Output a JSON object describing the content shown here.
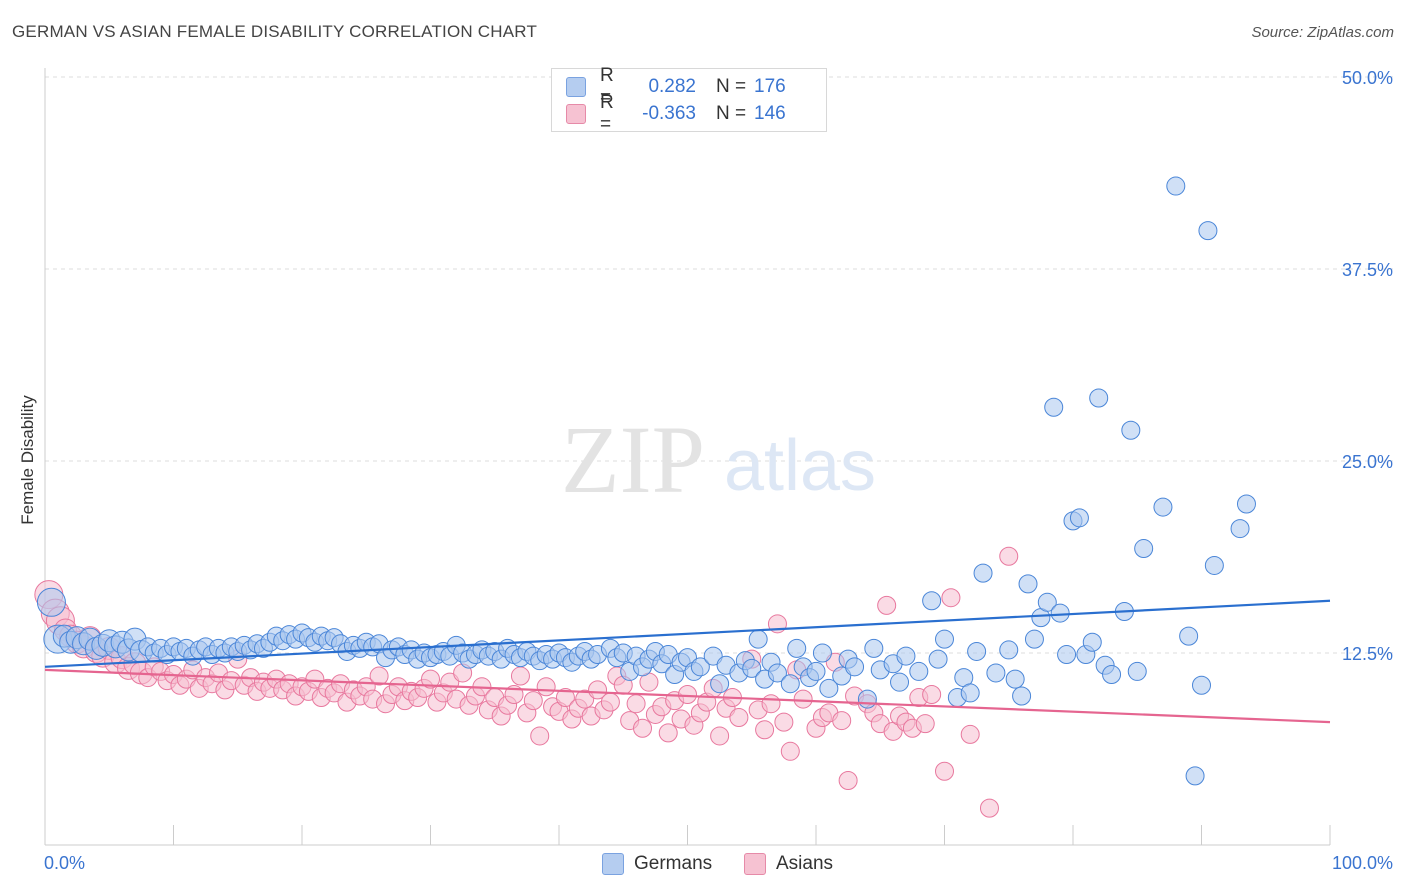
{
  "header": {
    "title": "GERMAN VS ASIAN FEMALE DISABILITY CORRELATION CHART",
    "source": "Source: ZipAtlas.com"
  },
  "watermark": {
    "zip": "ZIP",
    "atlas": "atlas"
  },
  "legend": {
    "germans": {
      "r_label": "R =",
      "r_value": "0.282",
      "n_label": "N =",
      "n_value": "176"
    },
    "asians": {
      "r_label": "R =",
      "r_value": "-0.363",
      "n_label": "N =",
      "n_value": "146"
    }
  },
  "colors": {
    "germans_fill": "#a9c6ef",
    "germans_stroke": "#4a86d8",
    "germans_line": "#2a6fcf",
    "asians_fill": "#f6bdd0",
    "asians_stroke": "#e8789e",
    "asians_line": "#e56590",
    "tick_label": "#3a74d0",
    "grid": "#dddddd"
  },
  "chart_data": {
    "type": "scatter",
    "title": "GERMAN VS ASIAN FEMALE DISABILITY CORRELATION CHART",
    "xlabel": "",
    "ylabel": "Female Disability",
    "xlim": [
      0,
      100
    ],
    "ylim": [
      0,
      50
    ],
    "x_tick_labels": [
      "0.0%",
      "100.0%"
    ],
    "y_ticks": [
      12.5,
      25.0,
      37.5,
      50.0
    ],
    "y_tick_labels": [
      "12.5%",
      "25.0%",
      "37.5%",
      "50.0%"
    ],
    "grid": true,
    "legend_position": "bottom-center",
    "series": [
      {
        "name": "Germans",
        "r": 0.282,
        "n": 176,
        "trend": [
          [
            0,
            11.6
          ],
          [
            100,
            15.9
          ]
        ],
        "points": [
          [
            0.5,
            15.8
          ],
          [
            1,
            13.4
          ],
          [
            1.5,
            13.6
          ],
          [
            2,
            13.2
          ],
          [
            2.5,
            13.5
          ],
          [
            3,
            13.1
          ],
          [
            3.5,
            13.4
          ],
          [
            4,
            12.8
          ],
          [
            4.5,
            13.0
          ],
          [
            5,
            13.3
          ],
          [
            5.5,
            12.9
          ],
          [
            6,
            13.2
          ],
          [
            6.5,
            12.7
          ],
          [
            7,
            13.4
          ],
          [
            7.5,
            12.6
          ],
          [
            8,
            12.9
          ],
          [
            8.5,
            12.5
          ],
          [
            9,
            12.8
          ],
          [
            9.5,
            12.4
          ],
          [
            10,
            12.9
          ],
          [
            10.5,
            12.6
          ],
          [
            11,
            12.8
          ],
          [
            11.5,
            12.3
          ],
          [
            12,
            12.7
          ],
          [
            12.5,
            12.9
          ],
          [
            13,
            12.4
          ],
          [
            13.5,
            12.8
          ],
          [
            14,
            12.5
          ],
          [
            14.5,
            12.9
          ],
          [
            15,
            12.6
          ],
          [
            15.5,
            13.0
          ],
          [
            16,
            12.7
          ],
          [
            16.5,
            13.1
          ],
          [
            17,
            12.8
          ],
          [
            17.5,
            13.2
          ],
          [
            18,
            13.6
          ],
          [
            18.5,
            13.3
          ],
          [
            19,
            13.7
          ],
          [
            19.5,
            13.4
          ],
          [
            20,
            13.8
          ],
          [
            20.5,
            13.5
          ],
          [
            21,
            13.2
          ],
          [
            21.5,
            13.6
          ],
          [
            22,
            13.3
          ],
          [
            22.5,
            13.5
          ],
          [
            23,
            13.1
          ],
          [
            23.5,
            12.6
          ],
          [
            24,
            13.0
          ],
          [
            24.5,
            12.8
          ],
          [
            25,
            13.2
          ],
          [
            25.5,
            12.9
          ],
          [
            26,
            13.1
          ],
          [
            26.5,
            12.2
          ],
          [
            27,
            12.7
          ],
          [
            27.5,
            12.9
          ],
          [
            28,
            12.4
          ],
          [
            28.5,
            12.7
          ],
          [
            29,
            12.1
          ],
          [
            29.5,
            12.5
          ],
          [
            30,
            12.2
          ],
          [
            30.5,
            12.4
          ],
          [
            31,
            12.6
          ],
          [
            31.5,
            12.3
          ],
          [
            32,
            13.0
          ],
          [
            32.5,
            12.5
          ],
          [
            33,
            12.1
          ],
          [
            33.5,
            12.4
          ],
          [
            34,
            12.7
          ],
          [
            34.5,
            12.3
          ],
          [
            35,
            12.6
          ],
          [
            35.5,
            12.1
          ],
          [
            36,
            12.8
          ],
          [
            36.5,
            12.4
          ],
          [
            37,
            12.2
          ],
          [
            37.5,
            12.6
          ],
          [
            38,
            12.3
          ],
          [
            38.5,
            12.0
          ],
          [
            39,
            12.4
          ],
          [
            39.5,
            12.1
          ],
          [
            40,
            12.5
          ],
          [
            40.5,
            12.2
          ],
          [
            41,
            11.9
          ],
          [
            41.5,
            12.3
          ],
          [
            42,
            12.6
          ],
          [
            42.5,
            12.1
          ],
          [
            43,
            12.4
          ],
          [
            44,
            12.8
          ],
          [
            44.5,
            12.2
          ],
          [
            45,
            12.5
          ],
          [
            45.5,
            11.3
          ],
          [
            46,
            12.3
          ],
          [
            46.5,
            11.6
          ],
          [
            47,
            12.1
          ],
          [
            47.5,
            12.6
          ],
          [
            48,
            11.8
          ],
          [
            48.5,
            12.4
          ],
          [
            49,
            11.1
          ],
          [
            49.5,
            11.9
          ],
          [
            50,
            12.2
          ],
          [
            50.5,
            11.3
          ],
          [
            51,
            11.6
          ],
          [
            52,
            12.3
          ],
          [
            52.5,
            10.5
          ],
          [
            53,
            11.7
          ],
          [
            54,
            11.2
          ],
          [
            54.5,
            12.0
          ],
          [
            55,
            11.5
          ],
          [
            55.5,
            13.4
          ],
          [
            56,
            10.8
          ],
          [
            56.5,
            11.9
          ],
          [
            57,
            11.2
          ],
          [
            58,
            10.5
          ],
          [
            58.5,
            12.8
          ],
          [
            59,
            11.6
          ],
          [
            59.5,
            10.9
          ],
          [
            60,
            11.3
          ],
          [
            60.5,
            12.5
          ],
          [
            61,
            10.2
          ],
          [
            62,
            11.0
          ],
          [
            62.5,
            12.1
          ],
          [
            63,
            11.6
          ],
          [
            64,
            9.5
          ],
          [
            64.5,
            12.8
          ],
          [
            65,
            11.4
          ],
          [
            66,
            11.8
          ],
          [
            66.5,
            10.6
          ],
          [
            67,
            12.3
          ],
          [
            68,
            11.3
          ],
          [
            69,
            15.9
          ],
          [
            69.5,
            12.1
          ],
          [
            70,
            13.4
          ],
          [
            71,
            9.6
          ],
          [
            71.5,
            10.9
          ],
          [
            72,
            9.9
          ],
          [
            72.5,
            12.6
          ],
          [
            73,
            17.7
          ],
          [
            74,
            11.2
          ],
          [
            75,
            12.7
          ],
          [
            75.5,
            10.8
          ],
          [
            76,
            9.7
          ],
          [
            76.5,
            17.0
          ],
          [
            77,
            13.4
          ],
          [
            77.5,
            14.8
          ],
          [
            78,
            15.8
          ],
          [
            78.5,
            28.5
          ],
          [
            79,
            15.1
          ],
          [
            79.5,
            12.4
          ],
          [
            80,
            21.1
          ],
          [
            80.5,
            21.3
          ],
          [
            81,
            12.4
          ],
          [
            81.5,
            13.2
          ],
          [
            82,
            29.1
          ],
          [
            82.5,
            11.7
          ],
          [
            83,
            11.1
          ],
          [
            84,
            15.2
          ],
          [
            84.5,
            27.0
          ],
          [
            85,
            11.3
          ],
          [
            85.5,
            19.3
          ],
          [
            87,
            22.0
          ],
          [
            88,
            42.9
          ],
          [
            89,
            13.6
          ],
          [
            89.5,
            4.5
          ],
          [
            90,
            10.4
          ],
          [
            90.5,
            40.0
          ],
          [
            91,
            18.2
          ],
          [
            93,
            20.6
          ],
          [
            93.5,
            22.2
          ]
        ]
      },
      {
        "name": "Asians",
        "r": -0.363,
        "n": 146,
        "trend": [
          [
            0,
            11.4
          ],
          [
            100,
            8.0
          ]
        ],
        "points": [
          [
            0.3,
            16.3
          ],
          [
            0.8,
            15.1
          ],
          [
            1.2,
            14.6
          ],
          [
            1.6,
            14.0
          ],
          [
            2,
            13.6
          ],
          [
            2.5,
            13.2
          ],
          [
            3,
            12.9
          ],
          [
            3.5,
            13.5
          ],
          [
            4,
            12.6
          ],
          [
            4.5,
            12.3
          ],
          [
            5,
            12.8
          ],
          [
            5.5,
            11.9
          ],
          [
            6,
            12.2
          ],
          [
            6.5,
            11.5
          ],
          [
            7,
            11.8
          ],
          [
            7.5,
            11.2
          ],
          [
            8,
            10.9
          ],
          [
            8.5,
            11.6
          ],
          [
            9,
            11.3
          ],
          [
            9.5,
            10.7
          ],
          [
            10,
            11.1
          ],
          [
            10.5,
            10.4
          ],
          [
            11,
            10.8
          ],
          [
            11.5,
            11.4
          ],
          [
            12,
            10.2
          ],
          [
            12.5,
            10.9
          ],
          [
            13,
            10.5
          ],
          [
            13.5,
            11.2
          ],
          [
            14,
            10.1
          ],
          [
            14.5,
            10.7
          ],
          [
            15,
            12.1
          ],
          [
            15.5,
            10.4
          ],
          [
            16,
            10.9
          ],
          [
            16.5,
            10.0
          ],
          [
            17,
            10.6
          ],
          [
            17.5,
            10.2
          ],
          [
            18,
            10.8
          ],
          [
            18.5,
            10.1
          ],
          [
            19,
            10.5
          ],
          [
            19.5,
            9.7
          ],
          [
            20,
            10.3
          ],
          [
            20.5,
            10.0
          ],
          [
            21,
            10.8
          ],
          [
            21.5,
            9.6
          ],
          [
            22,
            10.2
          ],
          [
            22.5,
            9.9
          ],
          [
            23,
            10.5
          ],
          [
            23.5,
            9.3
          ],
          [
            24,
            10.1
          ],
          [
            24.5,
            9.7
          ],
          [
            25,
            10.3
          ],
          [
            25.5,
            9.5
          ],
          [
            26,
            11.0
          ],
          [
            26.5,
            9.2
          ],
          [
            27,
            9.8
          ],
          [
            27.5,
            10.3
          ],
          [
            28,
            9.4
          ],
          [
            28.5,
            10.0
          ],
          [
            29,
            9.6
          ],
          [
            29.5,
            10.2
          ],
          [
            30,
            10.8
          ],
          [
            30.5,
            9.3
          ],
          [
            31,
            9.9
          ],
          [
            31.5,
            10.6
          ],
          [
            32,
            9.5
          ],
          [
            32.5,
            11.2
          ],
          [
            33,
            9.1
          ],
          [
            33.5,
            9.7
          ],
          [
            34,
            10.3
          ],
          [
            34.5,
            8.8
          ],
          [
            35,
            9.6
          ],
          [
            35.5,
            8.4
          ],
          [
            36,
            9.1
          ],
          [
            36.5,
            9.8
          ],
          [
            37,
            11.0
          ],
          [
            37.5,
            8.6
          ],
          [
            38,
            9.4
          ],
          [
            38.5,
            7.1
          ],
          [
            39,
            10.3
          ],
          [
            39.5,
            9.0
          ],
          [
            40,
            8.7
          ],
          [
            40.5,
            9.6
          ],
          [
            41,
            8.2
          ],
          [
            41.5,
            8.9
          ],
          [
            42,
            9.5
          ],
          [
            42.5,
            8.4
          ],
          [
            43,
            10.1
          ],
          [
            43.5,
            8.8
          ],
          [
            44,
            9.3
          ],
          [
            44.5,
            11.0
          ],
          [
            45,
            10.4
          ],
          [
            45.5,
            8.1
          ],
          [
            46,
            9.2
          ],
          [
            46.5,
            7.6
          ],
          [
            47,
            10.6
          ],
          [
            47.5,
            8.5
          ],
          [
            48,
            9.0
          ],
          [
            48.5,
            7.3
          ],
          [
            49,
            9.4
          ],
          [
            49.5,
            8.2
          ],
          [
            50,
            9.8
          ],
          [
            50.5,
            7.8
          ],
          [
            51,
            8.6
          ],
          [
            51.5,
            9.3
          ],
          [
            52,
            10.2
          ],
          [
            52.5,
            7.1
          ],
          [
            53,
            8.9
          ],
          [
            53.5,
            9.6
          ],
          [
            54,
            8.3
          ],
          [
            55,
            12.1
          ],
          [
            55.5,
            8.8
          ],
          [
            56,
            7.5
          ],
          [
            56.5,
            9.2
          ],
          [
            57,
            14.4
          ],
          [
            57.5,
            8.0
          ],
          [
            58,
            6.1
          ],
          [
            58.5,
            11.4
          ],
          [
            59,
            9.5
          ],
          [
            60,
            7.6
          ],
          [
            60.5,
            8.3
          ],
          [
            61,
            8.6
          ],
          [
            61.5,
            11.9
          ],
          [
            62,
            8.1
          ],
          [
            62.5,
            4.2
          ],
          [
            63,
            9.7
          ],
          [
            64,
            9.2
          ],
          [
            64.5,
            8.6
          ],
          [
            65,
            7.9
          ],
          [
            65.5,
            15.6
          ],
          [
            66,
            7.4
          ],
          [
            66.5,
            8.4
          ],
          [
            67,
            8.0
          ],
          [
            67.5,
            7.6
          ],
          [
            68,
            9.6
          ],
          [
            68.5,
            7.9
          ],
          [
            69,
            9.8
          ],
          [
            70,
            4.8
          ],
          [
            70.5,
            16.1
          ],
          [
            72,
            7.2
          ],
          [
            73.5,
            2.4
          ],
          [
            75,
            18.8
          ]
        ]
      }
    ]
  },
  "bottom_legend": {
    "germans": "Germans",
    "asians": "Asians"
  }
}
